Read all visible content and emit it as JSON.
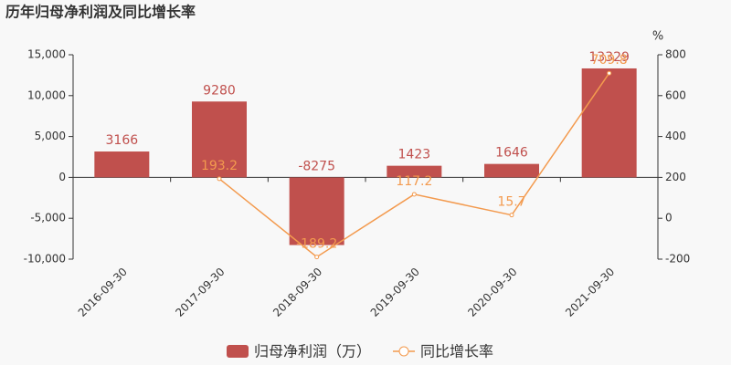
{
  "chart_data": {
    "type": "bar",
    "title": "历年归母净利润及同比增长率",
    "categories": [
      "2016-09-30",
      "2017-09-30",
      "2018-09-30",
      "2019-09-30",
      "2020-09-30",
      "2021-09-30"
    ],
    "series": [
      {
        "name": "归母净利润（万）",
        "type": "bar",
        "color": "#c0504d",
        "values": [
          3166,
          9280,
          -8275,
          1423,
          1646,
          13329
        ]
      },
      {
        "name": "同比增长率",
        "type": "line",
        "axis": "y2",
        "color": "#f39a4e",
        "values": [
          null,
          193.2,
          -189.2,
          117.2,
          15.7,
          709.8
        ]
      }
    ],
    "ylim": [
      -10000,
      15000
    ],
    "yticks": [
      {
        "value": -10000,
        "label": "-10,000"
      },
      {
        "value": -5000,
        "label": "-5,000"
      },
      0,
      {
        "value": 5000,
        "label": "5,000"
      },
      {
        "value": 10000,
        "label": "10,000"
      },
      {
        "value": 15000,
        "label": "15,000"
      }
    ],
    "y2lim": [
      -200,
      800
    ],
    "y2ticks": [
      -200,
      0,
      200,
      400,
      600,
      800
    ],
    "y2label": "%"
  }
}
